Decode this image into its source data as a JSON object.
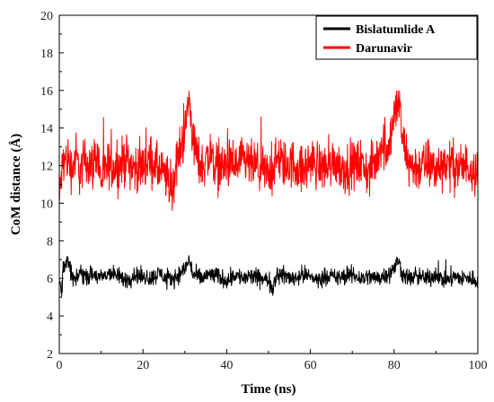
{
  "chart_data": {
    "type": "line",
    "xlabel": "Time (ns)",
    "ylabel": "CoM distance (Å)",
    "xlim": [
      0,
      100
    ],
    "ylim": [
      2,
      20
    ],
    "xticks": [
      0,
      20,
      40,
      60,
      80,
      100
    ],
    "yticks": [
      2,
      4,
      6,
      8,
      10,
      12,
      14,
      16,
      18,
      20
    ],
    "grid": false,
    "legend_position": "top-right",
    "series": [
      {
        "name": "Bislatumlide A",
        "color": "#000000",
        "x": [
          0,
          0.5,
          1,
          2,
          3,
          4,
          5,
          6,
          8,
          10,
          12,
          14,
          16,
          18,
          20,
          22,
          24,
          26,
          28,
          30,
          31,
          32,
          34,
          36,
          38,
          40,
          42,
          44,
          46,
          48,
          50,
          51,
          52,
          54,
          56,
          58,
          60,
          62,
          64,
          66,
          68,
          70,
          72,
          74,
          76,
          78,
          80,
          81,
          82,
          84,
          86,
          88,
          90,
          92,
          94,
          96,
          98,
          100
        ],
        "values": [
          5.9,
          5.3,
          6.7,
          6.9,
          6.2,
          5.8,
          6.4,
          6.1,
          6.2,
          6.0,
          6.3,
          6.1,
          5.9,
          6.2,
          6.1,
          6.0,
          6.3,
          5.9,
          6.1,
          6.5,
          7.0,
          6.2,
          6.0,
          6.2,
          6.1,
          5.9,
          6.2,
          6.0,
          6.1,
          6.0,
          5.9,
          5.5,
          6.3,
          6.1,
          6.0,
          6.2,
          6.1,
          5.9,
          6.2,
          6.0,
          6.1,
          6.2,
          6.0,
          6.1,
          6.0,
          6.2,
          6.5,
          7.0,
          6.2,
          6.0,
          6.1,
          6.0,
          6.2,
          5.9,
          6.1,
          6.0,
          6.0,
          5.9
        ],
        "jitter": 0.45
      },
      {
        "name": "Darunavir",
        "color": "#ff0000",
        "x": [
          0,
          0.5,
          1,
          2,
          3,
          4,
          5,
          6,
          8,
          9,
          10,
          12,
          14,
          16,
          18,
          20,
          22,
          24,
          26,
          27,
          28,
          29,
          30,
          31,
          32,
          33,
          34,
          36,
          38,
          40,
          42,
          44,
          46,
          48,
          50,
          52,
          54,
          56,
          58,
          60,
          62,
          64,
          66,
          68,
          70,
          72,
          74,
          76,
          77,
          78,
          79,
          80,
          81,
          82,
          83,
          84,
          86,
          88,
          90,
          92,
          94,
          96,
          98,
          100
        ],
        "values": [
          10.0,
          11.5,
          12.2,
          12.4,
          11.8,
          12.5,
          11.6,
          12.3,
          12.0,
          12.8,
          11.2,
          12.1,
          11.9,
          12.4,
          11.8,
          12.0,
          12.3,
          11.7,
          11.2,
          10.6,
          12.2,
          12.9,
          13.8,
          15.6,
          13.3,
          12.4,
          12.0,
          12.6,
          11.8,
          12.1,
          11.9,
          12.2,
          12.0,
          11.8,
          11.5,
          12.3,
          12.0,
          12.1,
          11.7,
          12.2,
          12.0,
          11.9,
          12.3,
          11.8,
          12.0,
          12.1,
          11.6,
          12.4,
          13.3,
          12.8,
          13.5,
          14.5,
          15.6,
          13.3,
          12.5,
          12.0,
          11.9,
          12.1,
          11.8,
          12.2,
          12.0,
          11.9,
          12.0,
          11.7
        ],
        "jitter": 1.25
      }
    ]
  }
}
